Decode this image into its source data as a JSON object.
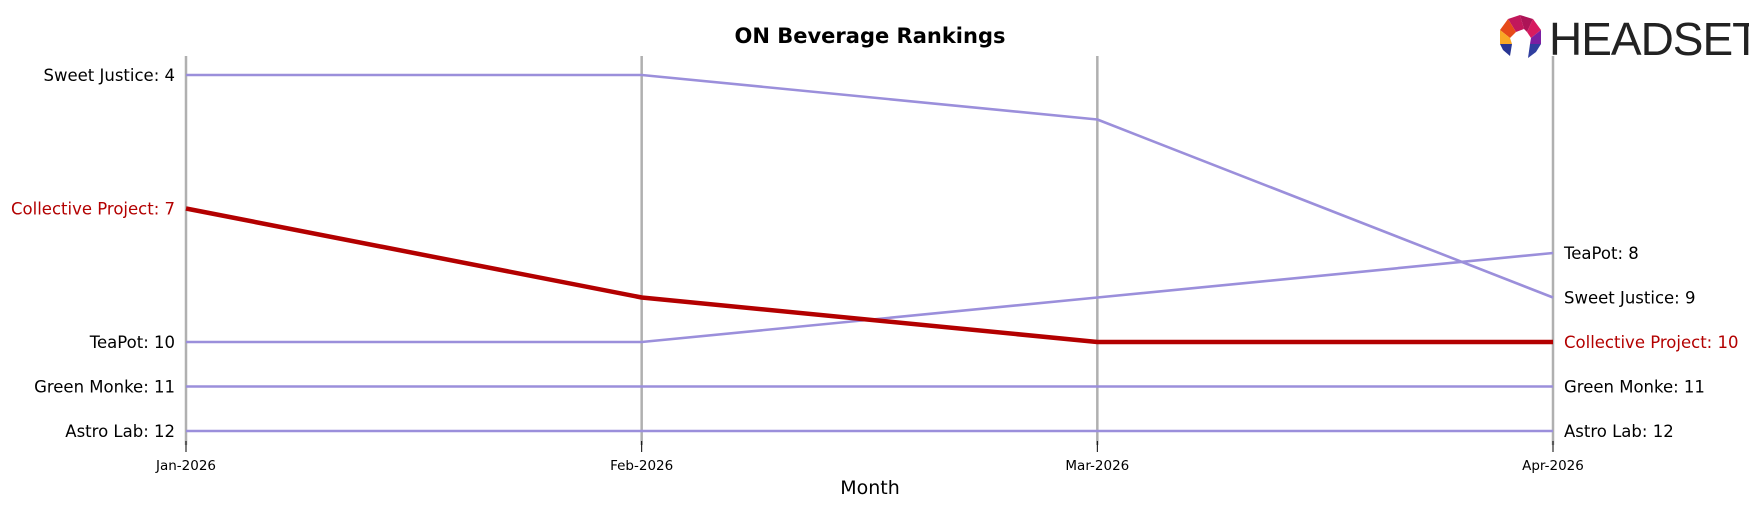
{
  "chart_data": {
    "type": "line",
    "title": "ON Beverage Rankings",
    "xlabel": "Month",
    "ylabel": "",
    "x": [
      "Jan-2026",
      "Feb-2026",
      "Mar-2026",
      "Apr-2026"
    ],
    "y_inverted": true,
    "ylim": [
      3.6,
      12.5
    ],
    "grid": "vertical lines at each month",
    "series": [
      {
        "name": "Sweet Justice",
        "values": [
          4,
          4,
          5,
          9
        ],
        "color": "#9B8FDB",
        "highlight": false,
        "start_label": "Sweet Justice: 4",
        "end_label": "Sweet Justice: 9"
      },
      {
        "name": "Collective Project",
        "values": [
          7,
          9,
          10,
          10
        ],
        "color": "#B30000",
        "highlight": true,
        "start_label": "Collective Project: 7",
        "end_label": "Collective Project: 10"
      },
      {
        "name": "TeaPot",
        "values": [
          10,
          10,
          9,
          8
        ],
        "color": "#9B8FDB",
        "highlight": false,
        "start_label": "TeaPot: 10",
        "end_label": "TeaPot: 8"
      },
      {
        "name": "Green Monke",
        "values": [
          11,
          11,
          11,
          11
        ],
        "color": "#9B8FDB",
        "highlight": false,
        "start_label": "Green Monke: 11",
        "end_label": "Green Monke: 11"
      },
      {
        "name": "Astro Lab",
        "values": [
          12,
          12,
          12,
          12
        ],
        "color": "#9B8FDB",
        "highlight": false,
        "start_label": "Astro Lab: 12",
        "end_label": "Astro Lab: 12"
      }
    ]
  },
  "logo": {
    "text": "HEADSET"
  },
  "colors": {
    "gridline": "#B0B0B0",
    "highlight": "#B30000",
    "default_line": "#9B8FDB",
    "text": "#000000"
  }
}
